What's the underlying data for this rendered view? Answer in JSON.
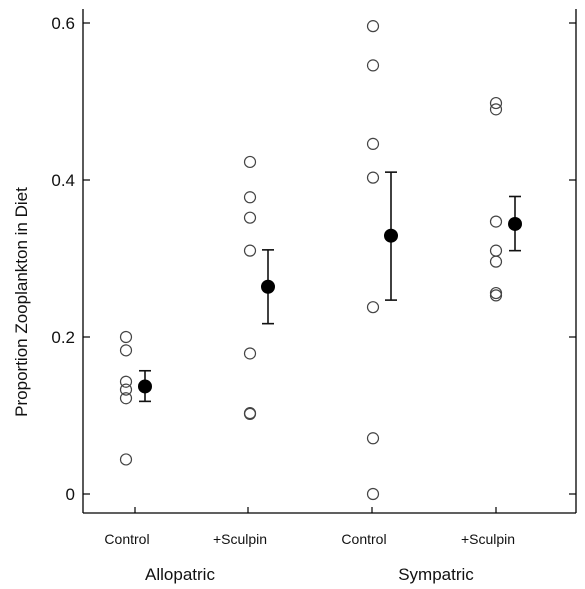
{
  "chart_data": {
    "type": "scatter",
    "title": "",
    "ylabel": "Proportion Zooplankton in Diet",
    "ylim": [
      0,
      0.6
    ],
    "yticks": [
      0,
      0.2,
      0.4,
      0.6
    ],
    "ytick_labels": [
      "0",
      "0.2",
      "0.4",
      "0.6"
    ],
    "categories": [
      "Control",
      "+Sculpin",
      "Control",
      "+Sculpin"
    ],
    "groups": [
      {
        "label": "Allopatric",
        "categories": [
          0,
          1
        ]
      },
      {
        "label": "Sympatric",
        "categories": [
          2,
          3
        ]
      }
    ],
    "grid": false,
    "legend": "none",
    "series": [
      {
        "points": [
          [
            0.2,
            0.183,
            0.143,
            0.133,
            0.122,
            0.044
          ],
          [
            0.423,
            0.378,
            0.352,
            0.31,
            0.179,
            0.103,
            0.102
          ],
          [
            0.596,
            0.546,
            0.446,
            0.403,
            0.238,
            0.071,
            0.0
          ],
          [
            0.498,
            0.49,
            0.347,
            0.31,
            0.296,
            0.256,
            0.253
          ]
        ],
        "marker": "open-circle"
      },
      {
        "means": [
          0.137,
          0.264,
          0.329,
          0.344
        ],
        "error_low": [
          0.118,
          0.217,
          0.247,
          0.31
        ],
        "error_high": [
          0.157,
          0.311,
          0.41,
          0.379
        ],
        "marker": "filled-circle"
      }
    ]
  }
}
